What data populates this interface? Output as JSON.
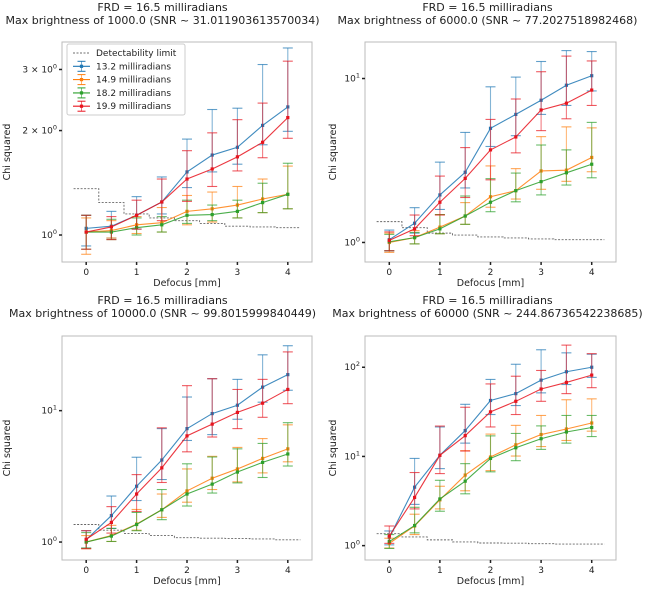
{
  "chart_data": [
    {
      "type": "line",
      "title": [
        "FRD = 16.5 milliradians",
        "Max brightness of 1000.0 (SNR ~ 31.011903613570034)"
      ],
      "xlabel": "Defocus [mm]",
      "ylabel": "Chi squared",
      "yscale": "log",
      "xlim": [
        -0.48,
        4.48
      ],
      "ylim": [
        0.836,
        3.6
      ],
      "x": [
        0,
        0.5,
        1,
        1.5,
        2,
        2.5,
        3,
        3.5,
        4
      ],
      "xticks": [
        "0",
        "1",
        "2",
        "3",
        "4"
      ],
      "yticks": [
        {
          "value": 1,
          "base": "10",
          "exp": "0"
        },
        {
          "value": 2,
          "base": "2 × 10",
          "exp": "0"
        },
        {
          "value": 3,
          "base": "3 × 10",
          "exp": "0"
        }
      ],
      "legend": "upper-left",
      "limit": {
        "name": "Detectability limit",
        "values": [
          1.36,
          1.24,
          1.15,
          1.12,
          1.1,
          1.08,
          1.06,
          1.055,
          1.05
        ]
      },
      "series": [
        {
          "name": "13.2 milliradians",
          "color": "#1f77b4",
          "values": [
            1.045,
            1.06,
            1.14,
            1.245,
            1.52,
            1.7,
            1.79,
            2.07,
            2.34
          ],
          "err_low": [
            0.93,
            0.98,
            1.04,
            1.15,
            1.37,
            1.52,
            1.6,
            1.82,
            1.99
          ],
          "err_high": [
            1.14,
            1.17,
            1.29,
            1.47,
            1.89,
            2.3,
            2.32,
            3.1,
            3.46
          ]
        },
        {
          "name": "14.9 milliradians",
          "color": "#ff7f0e",
          "values": [
            1.02,
            1.03,
            1.07,
            1.085,
            1.17,
            1.19,
            1.22,
            1.27,
            1.31
          ],
          "err_low": [
            0.88,
            0.98,
            1.01,
            1.02,
            1.07,
            1.09,
            1.12,
            1.16,
            1.19
          ],
          "err_high": [
            1.12,
            1.1,
            1.13,
            1.2,
            1.3,
            1.33,
            1.38,
            1.45,
            1.58
          ]
        },
        {
          "name": "18.2 milliradians",
          "color": "#2ca02c",
          "values": [
            1.02,
            1.02,
            1.05,
            1.07,
            1.14,
            1.145,
            1.17,
            1.24,
            1.31
          ],
          "err_low": [
            0.91,
            0.97,
            1.0,
            1.02,
            1.08,
            1.1,
            1.12,
            1.16,
            1.19
          ],
          "err_high": [
            1.14,
            1.11,
            1.12,
            1.13,
            1.26,
            1.22,
            1.26,
            1.41,
            1.61
          ]
        },
        {
          "name": "19.9 milliradians",
          "color": "#e8141e",
          "values": [
            1.02,
            1.055,
            1.14,
            1.245,
            1.45,
            1.55,
            1.68,
            1.85,
            2.18
          ],
          "err_low": [
            0.91,
            0.97,
            1.04,
            1.1,
            1.25,
            1.38,
            1.53,
            1.67,
            1.9
          ],
          "err_high": [
            1.14,
            1.13,
            1.26,
            1.45,
            1.75,
            1.97,
            2.15,
            2.4,
            3.17
          ]
        }
      ]
    },
    {
      "type": "line",
      "title": [
        "FRD = 16.5 milliradians",
        "Max brightness of 6000.0 (SNR ~ 77.2027518982468)"
      ],
      "xlabel": "Defocus [mm]",
      "ylabel": "Chi squared",
      "yscale": "log",
      "xlim": [
        -0.48,
        4.48
      ],
      "ylim": [
        0.76,
        16.7
      ],
      "x": [
        0,
        0.5,
        1,
        1.5,
        2,
        2.5,
        3,
        3.5,
        4
      ],
      "xticks": [
        "0",
        "1",
        "2",
        "3",
        "4"
      ],
      "yticks": [
        {
          "value": 1,
          "base": "10",
          "exp": "0"
        },
        {
          "value": 10,
          "base": "10",
          "exp": "1"
        }
      ],
      "limit": {
        "values": [
          1.34,
          1.23,
          1.14,
          1.11,
          1.08,
          1.065,
          1.05,
          1.04,
          1.04
        ]
      },
      "series": [
        {
          "color": "#1f77b4",
          "values": [
            1.04,
            1.31,
            1.95,
            2.68,
            4.97,
            6.04,
            7.37,
            9.1,
            10.4
          ],
          "err_low": [
            0.89,
            1.14,
            1.59,
            2.15,
            3.85,
            4.48,
            6.04,
            6.85,
            8.4
          ],
          "err_high": [
            1.19,
            1.63,
            3.09,
            4.69,
            8.9,
            10.2,
            12.7,
            14.8,
            14.6
          ]
        },
        {
          "color": "#ff7f0e",
          "values": [
            1.0,
            1.07,
            1.24,
            1.45,
            1.9,
            2.07,
            2.73,
            2.76,
            3.3
          ],
          "err_low": [
            0.87,
            0.98,
            1.13,
            1.29,
            1.64,
            1.84,
            2.11,
            2.36,
            2.7
          ],
          "err_high": [
            1.14,
            1.18,
            1.48,
            1.75,
            2.93,
            2.82,
            4.42,
            5.07,
            5.0
          ]
        },
        {
          "color": "#2ca02c",
          "values": [
            1.01,
            1.07,
            1.21,
            1.45,
            1.76,
            2.07,
            2.35,
            2.66,
            3.0
          ],
          "err_low": [
            0.89,
            0.98,
            1.13,
            1.29,
            1.54,
            1.77,
            1.95,
            2.24,
            2.48
          ],
          "err_high": [
            1.12,
            1.15,
            1.48,
            1.92,
            2.45,
            2.65,
            3.93,
            3.67,
            5.4
          ]
        },
        {
          "color": "#e8141e",
          "values": [
            1.03,
            1.21,
            1.76,
            2.46,
            3.67,
            4.4,
            6.43,
            7.07,
            8.5
          ],
          "err_low": [
            0.89,
            1.1,
            1.47,
            1.88,
            2.41,
            3.52,
            4.81,
            5.68,
            6.85
          ],
          "err_high": [
            1.16,
            1.47,
            2.54,
            3.79,
            5.63,
            7.5,
            11.0,
            13.7,
            12.8
          ]
        }
      ]
    },
    {
      "type": "line",
      "title": [
        "FRD = 16.5 milliradians",
        "Max brightness of 10000.0 (SNR ~ 99.8015999840449)"
      ],
      "xlabel": "Defocus [mm]",
      "ylabel": "Chi squared",
      "yscale": "log",
      "xlim": [
        -0.48,
        4.48
      ],
      "ylim": [
        0.73,
        37
      ],
      "x": [
        0,
        0.5,
        1,
        1.5,
        2,
        2.5,
        3,
        3.5,
        4
      ],
      "xticks": [
        "0",
        "1",
        "2",
        "3",
        "4"
      ],
      "yticks": [
        {
          "value": 1,
          "base": "10",
          "exp": "0"
        },
        {
          "value": 10,
          "base": "10",
          "exp": "1"
        }
      ],
      "limit": {
        "values": [
          1.36,
          1.23,
          1.16,
          1.12,
          1.08,
          1.07,
          1.065,
          1.055,
          1.04
        ]
      },
      "series": [
        {
          "color": "#1f77b4",
          "values": [
            1.04,
            1.59,
            2.66,
            4.21,
            7.3,
            9.5,
            11.0,
            15.1,
            18.8
          ],
          "err_low": [
            0.9,
            1.27,
            2.07,
            2.99,
            5.93,
            6.57,
            8.6,
            11.6,
            14.3
          ],
          "err_high": [
            1.22,
            2.24,
            4.42,
            7.3,
            12.7,
            17.5,
            17.3,
            26.6,
            31.2
          ]
        },
        {
          "color": "#ff7f0e",
          "values": [
            1.0,
            1.12,
            1.37,
            1.76,
            2.45,
            3.06,
            3.6,
            4.33,
            5.12
          ],
          "err_low": [
            0.89,
            1.01,
            1.23,
            1.54,
            2.01,
            2.51,
            2.87,
            3.36,
            4.08
          ],
          "err_high": [
            1.12,
            1.34,
            1.77,
            2.32,
            3.6,
            4.49,
            5.25,
            6.13,
            7.8
          ]
        },
        {
          "color": "#2ca02c",
          "values": [
            1.0,
            1.11,
            1.36,
            1.76,
            2.32,
            2.76,
            3.41,
            4.04,
            4.68
          ],
          "err_low": [
            0.9,
            1.01,
            1.22,
            1.48,
            1.88,
            2.36,
            2.82,
            3.1,
            3.79
          ],
          "err_high": [
            1.18,
            1.27,
            1.68,
            2.51,
            3.94,
            4.44,
            5.12,
            5.63,
            8.1
          ]
        },
        {
          "color": "#e8141e",
          "values": [
            1.05,
            1.41,
            2.32,
            3.67,
            6.43,
            7.9,
            9.7,
            11.4,
            14.5
          ],
          "err_low": [
            0.89,
            1.17,
            1.71,
            2.84,
            4.86,
            6.3,
            7.3,
            8.9,
            11.3
          ],
          "err_high": [
            1.22,
            1.86,
            3.26,
            7.4,
            15.5,
            17.5,
            14.5,
            17.3,
            28.0
          ]
        }
      ]
    },
    {
      "type": "line",
      "title": [
        "FRD = 16.5 milliradians",
        "Max brightness of 60000 (SNR ~ 244.86736542238685)"
      ],
      "xlabel": "Defocus [mm]",
      "ylabel": "Chi squared",
      "yscale": "log",
      "xlim": [
        -0.48,
        4.48
      ],
      "ylim": [
        0.69,
        224
      ],
      "x": [
        0,
        0.5,
        1,
        1.5,
        2,
        2.5,
        3,
        3.5,
        4
      ],
      "xticks": [
        "0",
        "1",
        "2",
        "3",
        "4"
      ],
      "yticks": [
        {
          "value": 1,
          "base": "10",
          "exp": "0"
        },
        {
          "value": 10,
          "base": "10",
          "exp": "1"
        },
        {
          "value": 100,
          "base": "10",
          "exp": "2"
        }
      ],
      "limit": {
        "values": [
          1.36,
          1.25,
          1.16,
          1.1,
          1.07,
          1.065,
          1.05,
          1.04,
          1.04
        ]
      },
      "series": [
        {
          "color": "#1f77b4",
          "values": [
            1.23,
            4.52,
            10.3,
            19.5,
            42.4,
            50.6,
            71.7,
            89,
            100
          ],
          "err_low": [
            1.02,
            2.9,
            7.3,
            14.1,
            29.5,
            37.2,
            51.6,
            64,
            77
          ],
          "err_high": [
            1.46,
            9.5,
            21.4,
            38.4,
            73,
            108,
            157,
            145,
            140
          ]
        },
        {
          "color": "#ff7f0e",
          "values": [
            1.06,
            1.66,
            3.26,
            6.18,
            9.85,
            13.5,
            17.6,
            20.3,
            23.7
          ],
          "err_low": [
            0.94,
            1.33,
            2.58,
            4.12,
            6.93,
            10.1,
            12.9,
            15.1,
            19.2
          ],
          "err_high": [
            1.21,
            2.25,
            4.63,
            11.6,
            17.8,
            22.3,
            28.8,
            43.2,
            44.2
          ]
        },
        {
          "color": "#2ca02c",
          "values": [
            1.11,
            1.68,
            3.34,
            5.28,
            9.5,
            12.5,
            15.8,
            18.8,
            21.1
          ],
          "err_low": [
            0.93,
            1.39,
            2.43,
            3.81,
            6.72,
            8.96,
            12.0,
            14.1,
            16.7
          ],
          "err_high": [
            1.33,
            2.69,
            5.4,
            8.3,
            17.0,
            18.1,
            22,
            28.8,
            28.8
          ]
        },
        {
          "color": "#e8141e",
          "values": [
            1.28,
            3.47,
            10.3,
            17.1,
            31.6,
            41.5,
            57,
            67.6,
            81.6
          ],
          "err_low": [
            1.06,
            2.58,
            6.42,
            11.5,
            21.4,
            29.5,
            41.5,
            50.6,
            59
          ],
          "err_high": [
            1.66,
            6.6,
            21.9,
            35.6,
            65,
            79.3,
            92,
            177,
            142
          ]
        }
      ]
    }
  ]
}
